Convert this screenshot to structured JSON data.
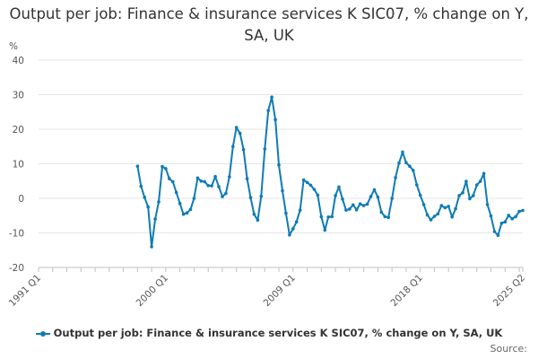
{
  "chart_data": {
    "type": "line",
    "title": "Output per job: Finance & insurance services K SIC07, % change on Y, SA, UK",
    "ylabel": "%",
    "ylim": [
      -20,
      40
    ],
    "y_ticks": [
      "40",
      "30",
      "20",
      "10",
      "0",
      "-10",
      "-20"
    ],
    "x_ticks": [
      "1991 Q1",
      "2000 Q1",
      "2009 Q1",
      "2018 Q1",
      "2025 Q2"
    ],
    "grid": true,
    "legend_position": "bottom",
    "series": [
      {
        "name": "Output per job: Finance & insurance services K SIC07, % change on Y, SA, UK",
        "color": "#0e7bb5",
        "x": [
          "1998 Q1",
          "1998 Q2",
          "1998 Q3",
          "1998 Q4",
          "1999 Q1",
          "1999 Q2",
          "1999 Q3",
          "1999 Q4",
          "2000 Q1",
          "2000 Q2",
          "2000 Q3",
          "2000 Q4",
          "2001 Q1",
          "2001 Q2",
          "2001 Q3",
          "2001 Q4",
          "2002 Q1",
          "2002 Q2",
          "2002 Q3",
          "2002 Q4",
          "2003 Q1",
          "2003 Q2",
          "2003 Q3",
          "2003 Q4",
          "2004 Q1",
          "2004 Q2",
          "2004 Q3",
          "2004 Q4",
          "2005 Q1",
          "2005 Q2",
          "2005 Q3",
          "2005 Q4",
          "2006 Q1",
          "2006 Q2",
          "2006 Q3",
          "2006 Q4",
          "2007 Q1",
          "2007 Q2",
          "2007 Q3",
          "2007 Q4",
          "2008 Q1",
          "2008 Q2",
          "2008 Q3",
          "2008 Q4",
          "2009 Q1",
          "2009 Q2",
          "2009 Q3",
          "2009 Q4",
          "2010 Q1",
          "2010 Q2",
          "2010 Q3",
          "2010 Q4",
          "2011 Q1",
          "2011 Q2",
          "2011 Q3",
          "2011 Q4",
          "2012 Q1",
          "2012 Q2",
          "2012 Q3",
          "2012 Q4",
          "2013 Q1",
          "2013 Q2",
          "2013 Q3",
          "2013 Q4",
          "2014 Q1",
          "2014 Q2",
          "2014 Q3",
          "2014 Q4",
          "2015 Q1",
          "2015 Q2",
          "2015 Q3",
          "2015 Q4",
          "2016 Q1",
          "2016 Q2",
          "2016 Q3",
          "2016 Q4",
          "2017 Q1",
          "2017 Q2",
          "2017 Q3",
          "2017 Q4",
          "2018 Q1",
          "2018 Q2",
          "2018 Q3",
          "2018 Q4",
          "2019 Q1",
          "2019 Q2",
          "2019 Q3",
          "2019 Q4",
          "2020 Q1",
          "2020 Q2",
          "2020 Q3",
          "2020 Q4",
          "2021 Q1",
          "2021 Q2",
          "2021 Q3",
          "2021 Q4",
          "2022 Q1",
          "2022 Q2",
          "2022 Q3",
          "2022 Q4",
          "2023 Q1",
          "2023 Q2",
          "2023 Q3",
          "2023 Q4",
          "2024 Q1",
          "2024 Q2",
          "2024 Q3",
          "2024 Q4",
          "2025 Q1",
          "2025 Q2"
        ],
        "values": [
          9.3,
          3.5,
          0.3,
          -2.5,
          -14,
          -6,
          -1,
          9.2,
          8.6,
          5.7,
          4.8,
          1.7,
          -1.5,
          -4.6,
          -4.2,
          -3.2,
          0,
          5.9,
          5,
          4.8,
          3.7,
          3.6,
          6.3,
          3.4,
          0.5,
          1.4,
          6.2,
          15,
          20.5,
          18.8,
          14.1,
          5.7,
          0.2,
          -4.6,
          -6.3,
          0.6,
          14.3,
          25.4,
          29.3,
          22.8,
          9.7,
          2.2,
          -4.3,
          -10.6,
          -8.8,
          -6.8,
          -3.4,
          5.3,
          4.6,
          3.8,
          2.6,
          0.9,
          -5.3,
          -9.2,
          -5.4,
          -5.3,
          0.8,
          3.3,
          -0.2,
          -3.4,
          -3.1,
          -1.9,
          -3.3,
          -1.6,
          -2.1,
          -1.7,
          0.5,
          2.5,
          0.4,
          -4,
          -5.3,
          -5.5,
          0,
          6,
          10.2,
          13.4,
          10.3,
          9.3,
          8.1,
          3.9,
          0.9,
          -1.8,
          -4.8,
          -6.2,
          -5.2,
          -4.5,
          -2.1,
          -2.7,
          -2.3,
          -5.4,
          -3,
          0.8,
          1.6,
          4.9,
          -0.1,
          0.8,
          3.9,
          4.9,
          7.2,
          -1.8,
          -5.1,
          -9.6,
          -10.7,
          -7.2,
          -6.8,
          -4.9,
          -5.9,
          -5.3,
          -3.8,
          -3.5
        ]
      }
    ]
  },
  "legend": {
    "label": "Output per job: Finance & insurance services K SIC07, % change on Y, SA, UK"
  },
  "credits": "Source:"
}
